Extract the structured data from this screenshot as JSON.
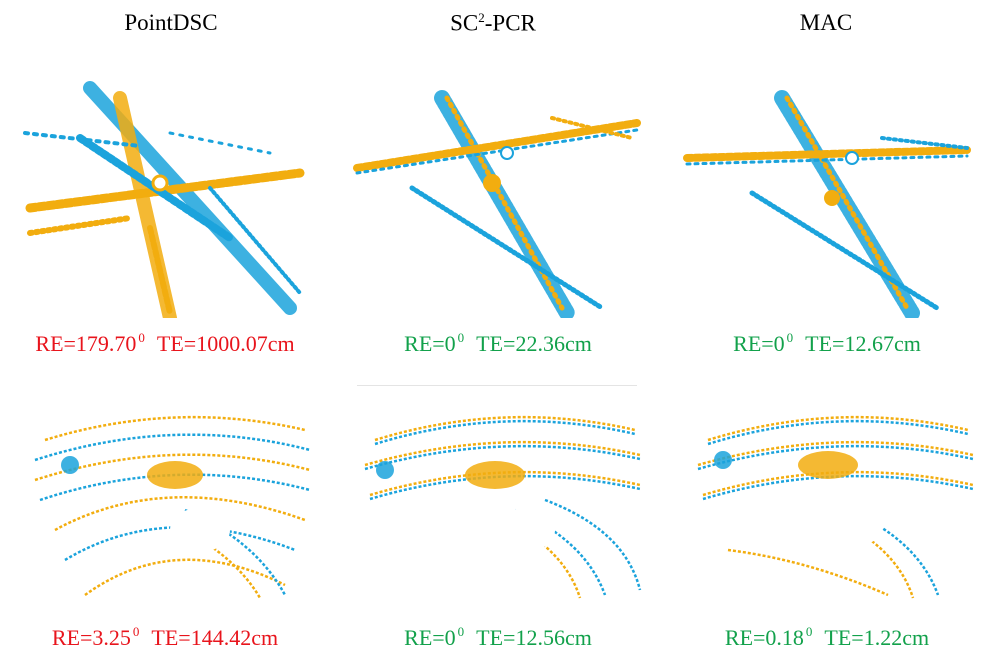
{
  "columns": [
    {
      "title": "PointDSC"
    },
    {
      "title_main": "SC",
      "title_sup": "2",
      "title_rest": "-PCR"
    },
    {
      "title": "MAC"
    }
  ],
  "rows": [
    {
      "results": [
        {
          "re": "RE=179.70",
          "deg": "0",
          "te": "TE=1000.07cm",
          "status": "fail"
        },
        {
          "re": "RE=0",
          "deg": "0",
          "te": "TE=22.36cm",
          "status": "success"
        },
        {
          "re": "RE=0",
          "deg": "0",
          "te": "TE=12.67cm",
          "status": "success"
        }
      ]
    },
    {
      "results": [
        {
          "re": "RE=3.25",
          "deg": "0",
          "te": "TE=144.42cm",
          "status": "fail"
        },
        {
          "re": "RE=0",
          "deg": "0",
          "te": "TE=12.56cm",
          "status": "success"
        },
        {
          "re": "RE=0.18",
          "deg": "0",
          "te": "TE=1.22cm",
          "status": "success"
        }
      ]
    }
  ],
  "colors": {
    "source_cloud": "#1ba3dc",
    "target_cloud": "#f2ad0f",
    "fail_text": "#e8141c",
    "success_text": "#12a14b"
  }
}
